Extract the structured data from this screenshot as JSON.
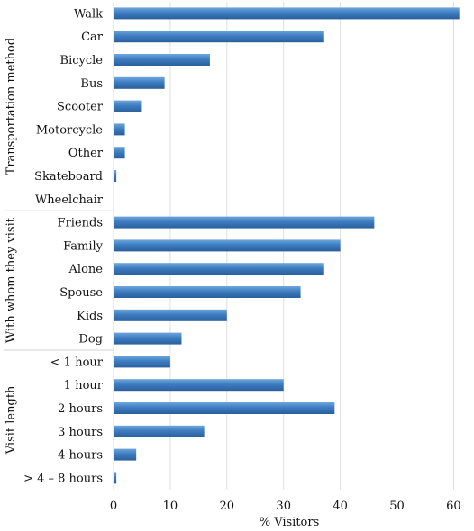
{
  "chart_data": {
    "type": "bar",
    "orientation": "horizontal",
    "xlabel": "% Visitors",
    "xlim": [
      0,
      62
    ],
    "xticks": [
      0,
      10,
      20,
      30,
      40,
      50,
      60
    ],
    "grid": "vertical",
    "bar_color": "#3f7fc0",
    "groups": [
      {
        "name": "Transportation method",
        "categories": [
          "Walk",
          "Car",
          "Bicycle",
          "Bus",
          "Scooter",
          "Motorcycle",
          "Other",
          "Skateboard",
          "Wheelchair"
        ],
        "values": [
          61,
          37,
          17,
          9,
          5,
          2,
          2,
          0.5,
          0
        ]
      },
      {
        "name": "With whom they visit",
        "categories": [
          "Friends",
          "Family",
          "Alone",
          "Spouse",
          "Kids",
          "Dog"
        ],
        "values": [
          46,
          40,
          37,
          33,
          20,
          12
        ]
      },
      {
        "name": "Visit length",
        "categories": [
          "< 1 hour",
          "1 hour",
          "2 hours",
          "3 hours",
          "4 hours",
          "> 4 – 8 hours"
        ],
        "values": [
          10,
          30,
          39,
          16,
          4,
          0.5
        ]
      }
    ]
  }
}
